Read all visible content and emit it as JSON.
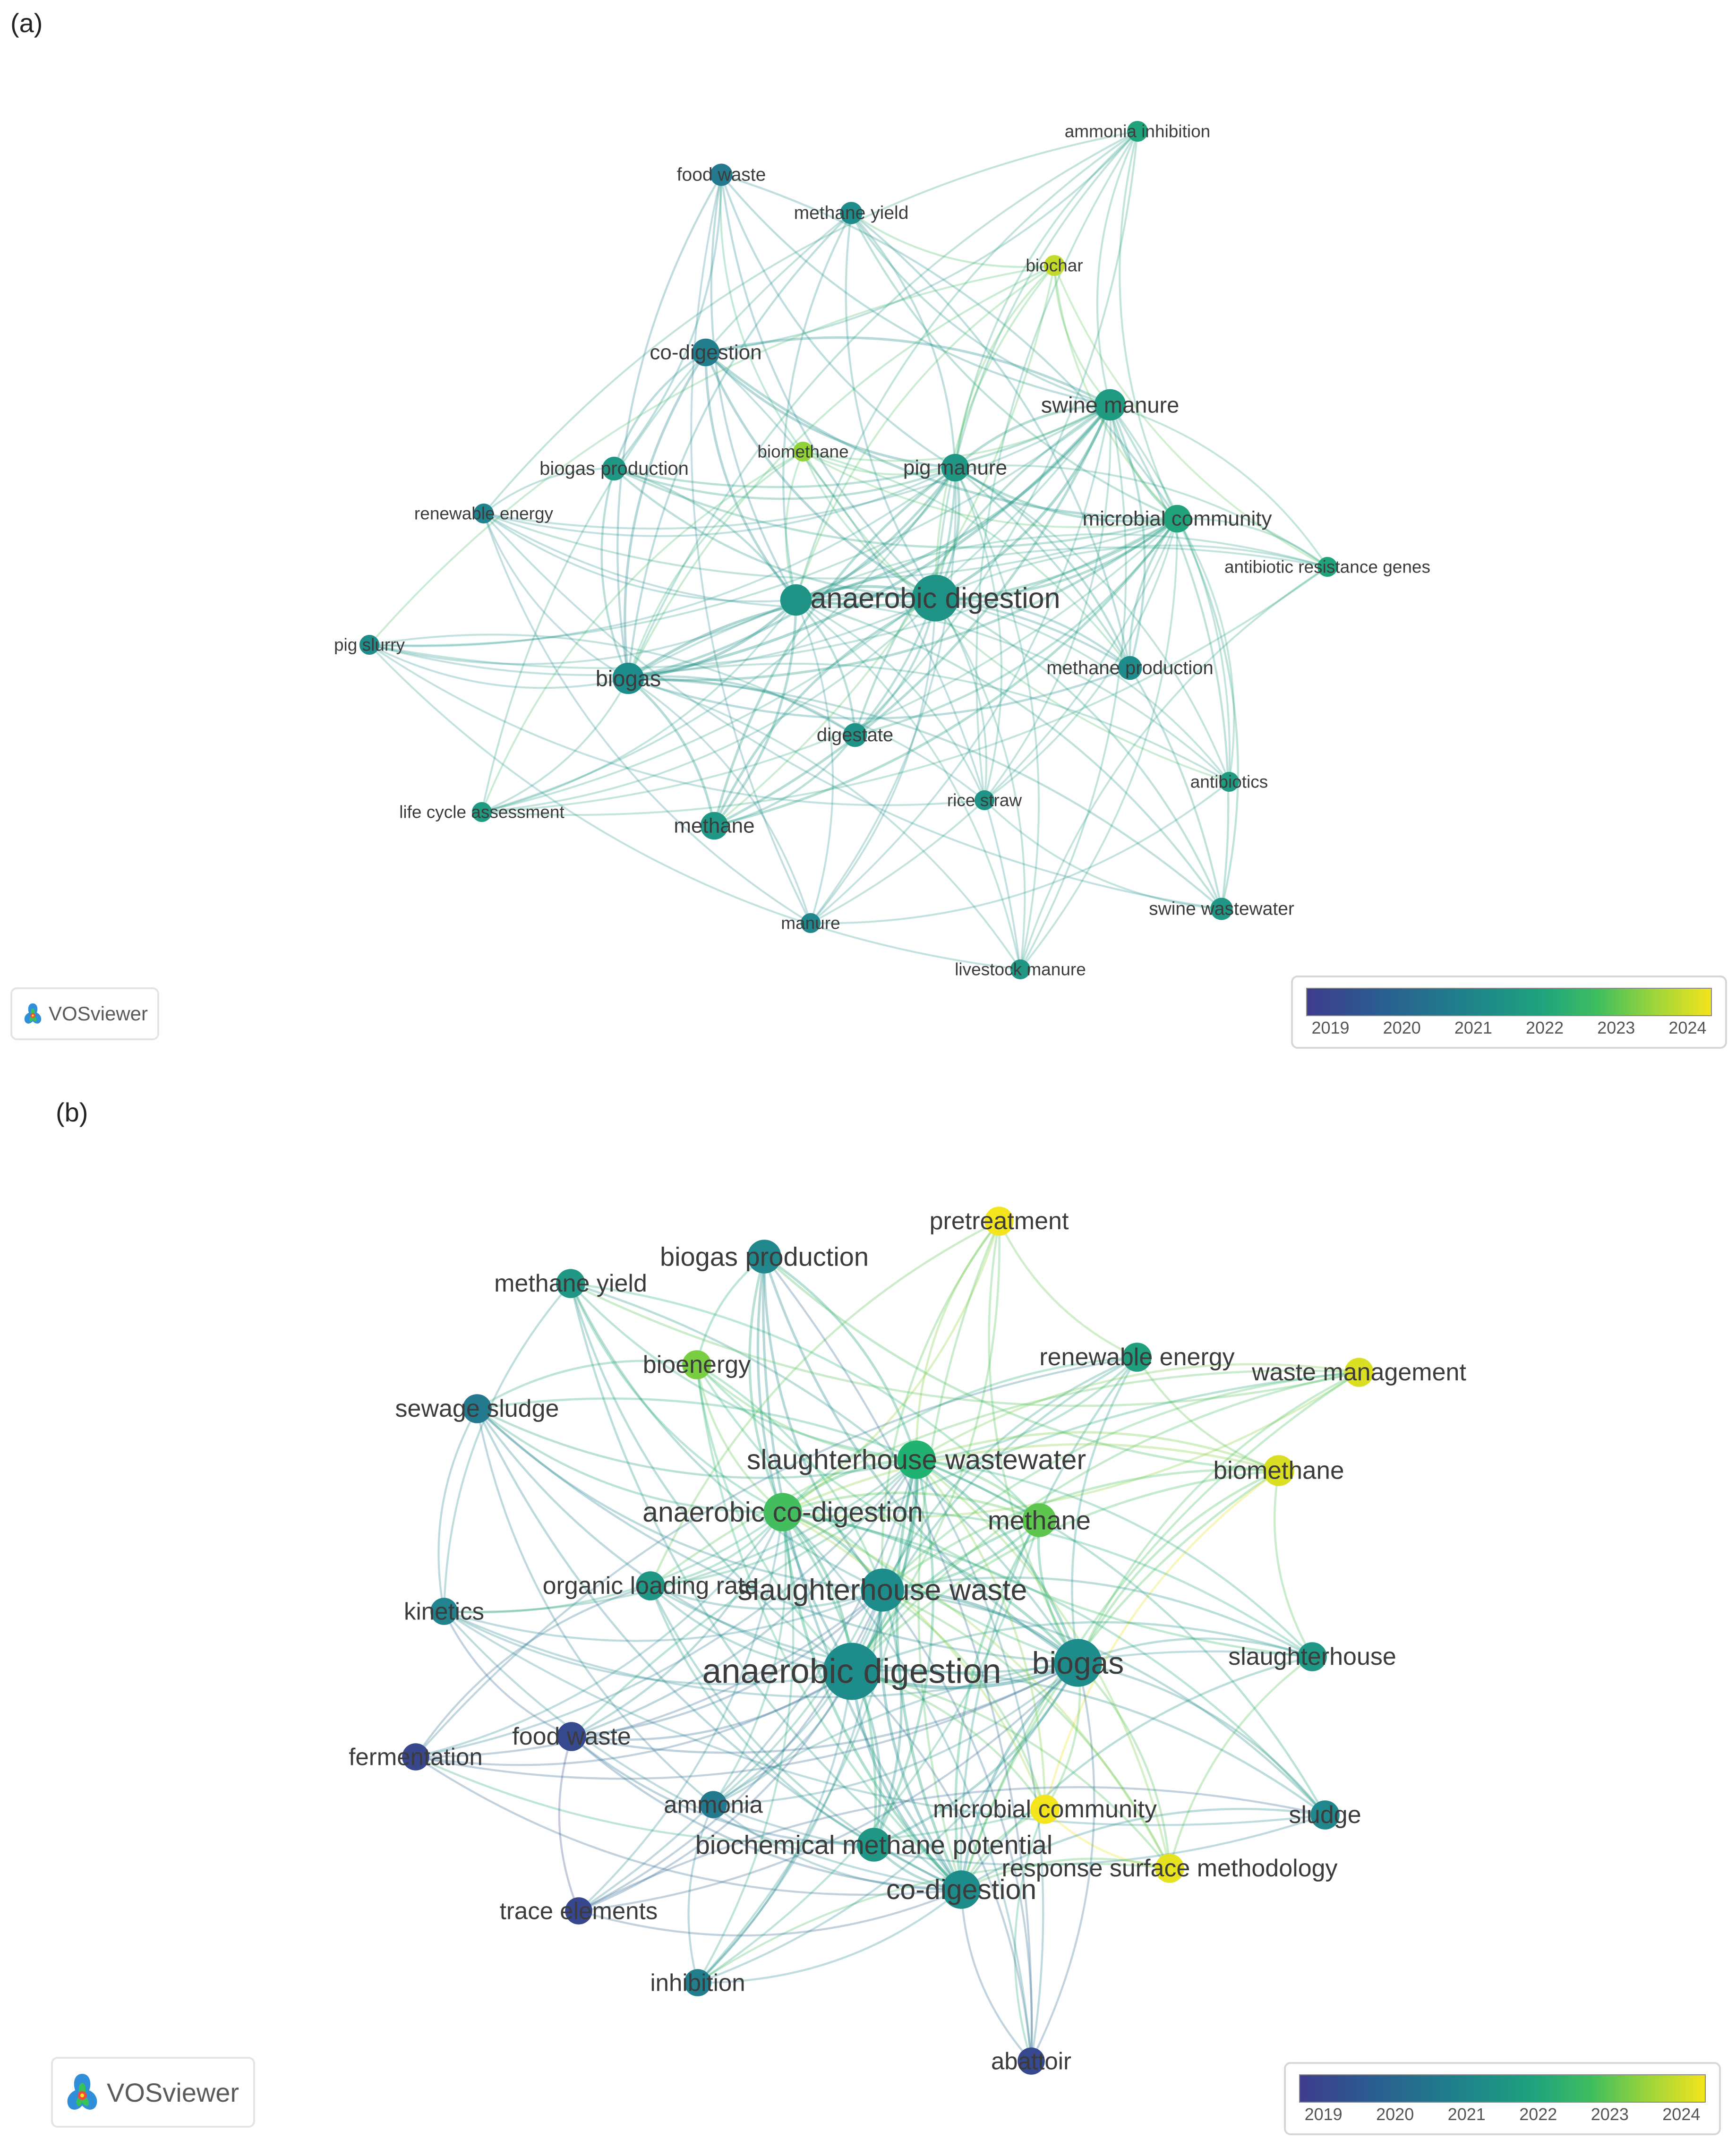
{
  "panels": [
    {
      "id": "a",
      "label": "(a)",
      "brand": "VOSviewer",
      "colorbar_ticks": [
        "2019",
        "2020",
        "2021",
        "2022",
        "2023",
        "2024"
      ],
      "nodes": [
        {
          "label": "anaerobic digestion",
          "year": 2021.2,
          "weight": 5
        },
        {
          "label": "biogas",
          "year": 2021.0,
          "weight": 3
        },
        {
          "label": "",
          "year": 2021.2,
          "weight": 3
        },
        {
          "label": "swine manure",
          "year": 2021.4,
          "weight": 3
        },
        {
          "label": "pig manure",
          "year": 2021.3,
          "weight": 2.5
        },
        {
          "label": "microbial community",
          "year": 2021.6,
          "weight": 2.5
        },
        {
          "label": "co-digestion",
          "year": 2020.7,
          "weight": 2.5
        },
        {
          "label": "methane",
          "year": 2021.3,
          "weight": 2.5
        },
        {
          "label": "methane production",
          "year": 2021.0,
          "weight": 2
        },
        {
          "label": "biogas production",
          "year": 2021.3,
          "weight": 2
        },
        {
          "label": "digestate",
          "year": 2021.2,
          "weight": 2
        },
        {
          "label": "methane yield",
          "year": 2021.0,
          "weight": 1.8
        },
        {
          "label": "food waste",
          "year": 2020.6,
          "weight": 1.8
        },
        {
          "label": "ammonia inhibition",
          "year": 2021.6,
          "weight": 1.6
        },
        {
          "label": "biochar",
          "year": 2023.6,
          "weight": 1.6
        },
        {
          "label": "biomethane",
          "year": 2023.2,
          "weight": 1.5
        },
        {
          "label": "renewable energy",
          "year": 2020.8,
          "weight": 1.5
        },
        {
          "label": "pig slurry",
          "year": 2021.0,
          "weight": 1.5
        },
        {
          "label": "life cycle assessment",
          "year": 2021.4,
          "weight": 1.5
        },
        {
          "label": "manure",
          "year": 2020.9,
          "weight": 1.5
        },
        {
          "label": "rice straw",
          "year": 2021.2,
          "weight": 1.5
        },
        {
          "label": "antibiotic resistance genes",
          "year": 2021.6,
          "weight": 1.5
        },
        {
          "label": "antibiotics",
          "year": 2021.4,
          "weight": 1.5
        },
        {
          "label": "swine wastewater",
          "year": 2021.3,
          "weight": 1.8
        },
        {
          "label": "livestock manure",
          "year": 2021.3,
          "weight": 1.5
        }
      ]
    },
    {
      "id": "b",
      "label": "(b)",
      "brand": "VOSviewer",
      "colorbar_ticks": [
        "2019",
        "2020",
        "2021",
        "2022",
        "2023",
        "2024"
      ],
      "nodes": [
        {
          "label": "anaerobic digestion",
          "year": 2021.0,
          "weight": 5
        },
        {
          "label": "biogas",
          "year": 2021.0,
          "weight": 4
        },
        {
          "label": "slaughterhouse waste",
          "year": 2021.0,
          "weight": 3.5
        },
        {
          "label": "slaughterhouse wastewater",
          "year": 2022.0,
          "weight": 3
        },
        {
          "label": "anaerobic co-digestion",
          "year": 2022.4,
          "weight": 3
        },
        {
          "label": "methane",
          "year": 2022.7,
          "weight": 2.5
        },
        {
          "label": "biogas production",
          "year": 2020.9,
          "weight": 2.5
        },
        {
          "label": "pretreatment",
          "year": 2024.0,
          "weight": 2
        },
        {
          "label": "methane yield",
          "year": 2021.3,
          "weight": 2
        },
        {
          "label": "bioenergy",
          "year": 2023.0,
          "weight": 2
        },
        {
          "label": "renewable energy",
          "year": 2021.5,
          "weight": 2
        },
        {
          "label": "waste management",
          "year": 2023.8,
          "weight": 2
        },
        {
          "label": "sewage sludge",
          "year": 2020.6,
          "weight": 2
        },
        {
          "label": "biomethane",
          "year": 2023.8,
          "weight": 2.2
        },
        {
          "label": "organic loading rate",
          "year": 2021.3,
          "weight": 2
        },
        {
          "label": "kinetics",
          "year": 2020.8,
          "weight": 1.8
        },
        {
          "label": "slaughterhouse",
          "year": 2021.3,
          "weight": 2
        },
        {
          "label": "fermentation",
          "year": 2019.3,
          "weight": 1.8
        },
        {
          "label": "food waste",
          "year": 2019.4,
          "weight": 2
        },
        {
          "label": "ammonia",
          "year": 2020.6,
          "weight": 1.8
        },
        {
          "label": "microbial community",
          "year": 2024.0,
          "weight": 2
        },
        {
          "label": "biochemical methane potential",
          "year": 2021.3,
          "weight": 2.5
        },
        {
          "label": "sludge",
          "year": 2020.9,
          "weight": 2
        },
        {
          "label": "response surface methodology",
          "year": 2023.9,
          "weight": 2
        },
        {
          "label": "co-digestion",
          "year": 2021.0,
          "weight": 3
        },
        {
          "label": "trace elements",
          "year": 2019.3,
          "weight": 1.8
        },
        {
          "label": "inhibition",
          "year": 2020.7,
          "weight": 1.8
        },
        {
          "label": "abattoir",
          "year": 2019.4,
          "weight": 1.8
        }
      ]
    }
  ]
}
